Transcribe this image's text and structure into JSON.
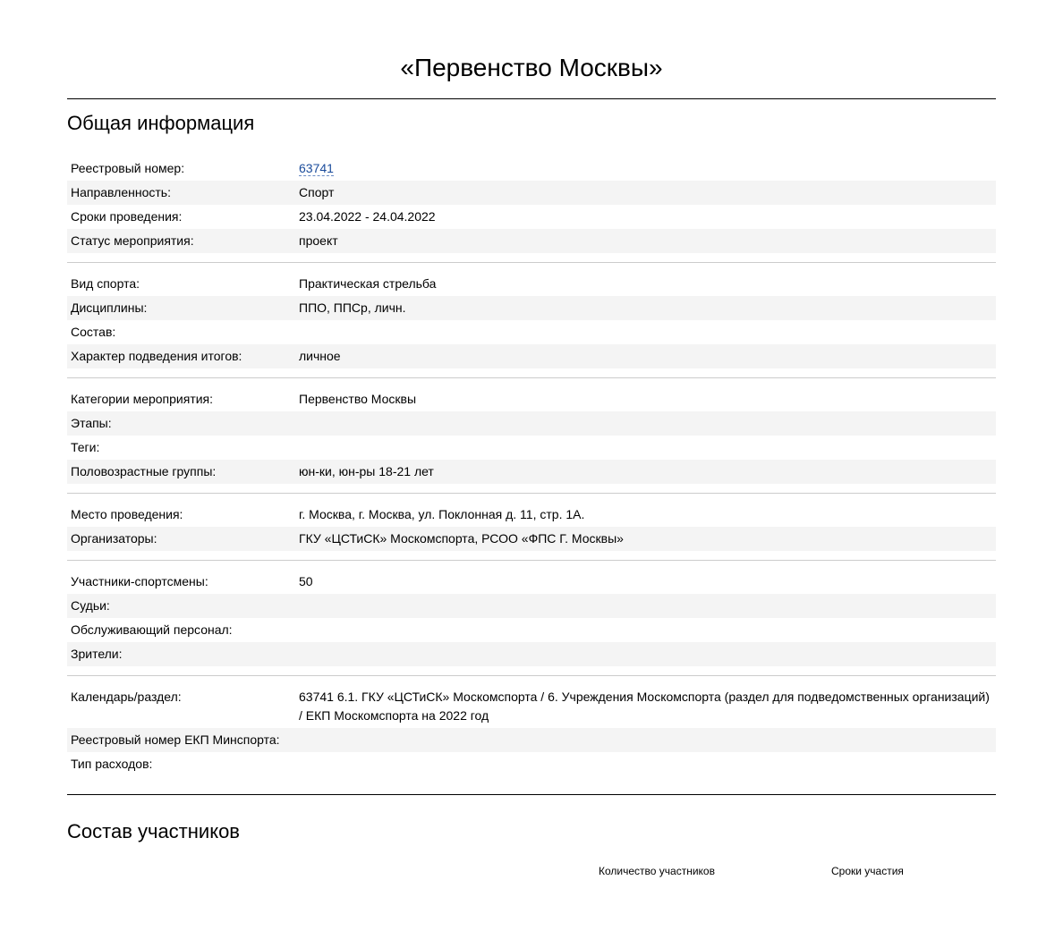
{
  "title": "«Первенство Москвы»",
  "section1": {
    "heading": "Общая информация",
    "groups": [
      [
        {
          "label": "Реестровый номер:",
          "value": "63741",
          "link": true,
          "shaded": false
        },
        {
          "label": "Направленность:",
          "value": "Спорт",
          "shaded": true
        },
        {
          "label": "Сроки проведения:",
          "value": "23.04.2022 - 24.04.2022",
          "shaded": false
        },
        {
          "label": "Статус мероприятия:",
          "value": "проект",
          "shaded": true
        }
      ],
      [
        {
          "label": "Вид спорта:",
          "value": "Практическая стрельба",
          "shaded": false
        },
        {
          "label": "Дисциплины:",
          "value": "ППО, ППСр, личн.",
          "shaded": true
        },
        {
          "label": "Состав:",
          "value": "",
          "shaded": false
        },
        {
          "label": "Характер подведения итогов:",
          "value": "личное",
          "shaded": true
        }
      ],
      [
        {
          "label": "Категории мероприятия:",
          "value": "Первенство Москвы",
          "shaded": false
        },
        {
          "label": "Этапы:",
          "value": "",
          "shaded": true
        },
        {
          "label": "Теги:",
          "value": "",
          "shaded": false
        },
        {
          "label": "Половозрастные группы:",
          "value": "юн-ки, юн-ры 18-21 лет",
          "shaded": true
        }
      ],
      [
        {
          "label": "Место проведения:",
          "value": "г. Москва, г. Москва, ул. Поклонная д. 11, стр. 1А.",
          "shaded": false
        },
        {
          "label": "Организаторы:",
          "value": "ГКУ «ЦСТиСК» Москомспорта, РСОО «ФПС Г. Москвы»",
          "shaded": true
        }
      ],
      [
        {
          "label": "Участники-спортсмены:",
          "value": "50",
          "shaded": false
        },
        {
          "label": "Судьи:",
          "value": "",
          "shaded": true
        },
        {
          "label": "Обслуживающий персонал:",
          "value": "",
          "shaded": false
        },
        {
          "label": "Зрители:",
          "value": "",
          "shaded": true
        }
      ],
      [
        {
          "label": "Календарь/раздел:",
          "value": "63741  6.1. ГКУ «ЦСТиСК» Москомспорта  / 6. Учреждения Москомспорта (раздел для подведомственных организаций)    / ЕКП Москомспорта на 2022 год",
          "shaded": false
        },
        {
          "label": "Реестровый номер ЕКП Минспорта:",
          "value": "",
          "shaded": true
        },
        {
          "label": "Тип расходов:",
          "value": "",
          "shaded": false
        }
      ]
    ]
  },
  "section2": {
    "heading": "Состав участников",
    "columns": {
      "qty": "Количество участников",
      "dates": "Сроки участия"
    }
  }
}
